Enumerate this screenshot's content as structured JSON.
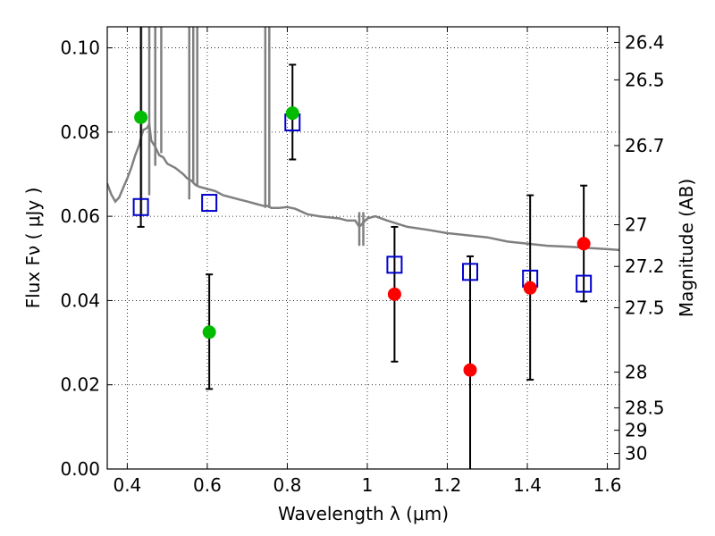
{
  "chart_data": {
    "type": "scatter",
    "xlabel": "Wavelength  λ (μm)",
    "ylabel": "Flux  Fν  ( μJy )",
    "ylabel_right": "Magnitude (AB)",
    "xlim": [
      0.35,
      1.63
    ],
    "ylim": [
      0.0,
      0.105
    ],
    "grid": true,
    "x_ticks": [
      0.4,
      0.6,
      0.8,
      1.0,
      1.2,
      1.4,
      1.6
    ],
    "x_tick_labels": [
      "0.4",
      "0.6",
      "0.8",
      "1",
      "1.2",
      "1.4",
      "1.6"
    ],
    "y_ticks": [
      0.0,
      0.02,
      0.04,
      0.06,
      0.08,
      0.1
    ],
    "y_tick_labels": [
      "0.00",
      "0.02",
      "0.04",
      "0.06",
      "0.08",
      "0.10"
    ],
    "right_ticks": [
      {
        "flux": 0.1013,
        "label": "26.4"
      },
      {
        "flux": 0.0924,
        "label": "26.5"
      },
      {
        "flux": 0.0768,
        "label": "26.7"
      },
      {
        "flux": 0.058,
        "label": "27"
      },
      {
        "flux": 0.0481,
        "label": "27.2"
      },
      {
        "flux": 0.0383,
        "label": "27.5"
      },
      {
        "flux": 0.023,
        "label": "28"
      },
      {
        "flux": 0.0145,
        "label": "28.5"
      },
      {
        "flux": 0.0092,
        "label": "29"
      },
      {
        "flux": 0.0037,
        "label": "30"
      }
    ],
    "model_spectrum": {
      "color": "#808080",
      "x": [
        0.35,
        0.36,
        0.37,
        0.38,
        0.39,
        0.4,
        0.41,
        0.42,
        0.43,
        0.435,
        0.44,
        0.45,
        0.455,
        0.46,
        0.47,
        0.48,
        0.49,
        0.5,
        0.52,
        0.54,
        0.55,
        0.56,
        0.57,
        0.58,
        0.6,
        0.62,
        0.64,
        0.66,
        0.68,
        0.7,
        0.72,
        0.74,
        0.75,
        0.76,
        0.78,
        0.8,
        0.82,
        0.85,
        0.88,
        0.9,
        0.93,
        0.95,
        0.97,
        0.98,
        0.99,
        1.0,
        1.02,
        1.05,
        1.1,
        1.15,
        1.2,
        1.25,
        1.3,
        1.35,
        1.4,
        1.45,
        1.5,
        1.55,
        1.6,
        1.63
      ],
      "y": [
        0.0678,
        0.0652,
        0.0635,
        0.0645,
        0.0668,
        0.069,
        0.0715,
        0.0745,
        0.077,
        0.079,
        0.0805,
        0.081,
        0.082,
        0.078,
        0.0765,
        0.0745,
        0.074,
        0.0725,
        0.0715,
        0.07,
        0.069,
        0.0685,
        0.0675,
        0.067,
        0.0665,
        0.066,
        0.065,
        0.0645,
        0.064,
        0.0635,
        0.063,
        0.0625,
        0.0625,
        0.062,
        0.062,
        0.0622,
        0.0618,
        0.0605,
        0.06,
        0.0598,
        0.0595,
        0.059,
        0.059,
        0.0575,
        0.0585,
        0.0595,
        0.06,
        0.059,
        0.0575,
        0.0568,
        0.056,
        0.0555,
        0.055,
        0.054,
        0.0535,
        0.053,
        0.0528,
        0.0525,
        0.0522,
        0.052
      ]
    },
    "model_lines": [
      {
        "x": 0.435,
        "top": 0.105,
        "bottom": 0.06
      },
      {
        "x": 0.455,
        "top": 0.105,
        "bottom": 0.065
      },
      {
        "x": 0.47,
        "top": 0.105,
        "bottom": 0.072
      },
      {
        "x": 0.485,
        "top": 0.105,
        "bottom": 0.075
      },
      {
        "x": 0.555,
        "top": 0.105,
        "bottom": 0.064
      },
      {
        "x": 0.565,
        "top": 0.105,
        "bottom": 0.068
      },
      {
        "x": 0.575,
        "top": 0.105,
        "bottom": 0.067
      },
      {
        "x": 0.745,
        "top": 0.105,
        "bottom": 0.062
      },
      {
        "x": 0.755,
        "top": 0.105,
        "bottom": 0.062
      },
      {
        "x": 0.98,
        "top": 0.061,
        "bottom": 0.053
      },
      {
        "x": 0.99,
        "top": 0.061,
        "bottom": 0.053
      }
    ],
    "model_photometry": {
      "color": "#0000cc",
      "x": [
        0.434,
        0.605,
        0.813,
        1.068,
        1.257,
        1.407,
        1.541
      ],
      "y": [
        0.0622,
        0.0632,
        0.0823,
        0.0485,
        0.0468,
        0.0452,
        0.044
      ]
    },
    "detections_green": {
      "color": "#00bb00",
      "x": [
        0.434,
        0.605,
        0.813
      ],
      "y": [
        0.0835,
        0.0325,
        0.0845
      ],
      "err_low": [
        0.0575,
        0.019,
        0.0735
      ],
      "err_high": [
        0.105,
        0.0462,
        0.096
      ]
    },
    "detections_red": {
      "color": "#ff0000",
      "x": [
        1.068,
        1.257,
        1.407,
        1.541
      ],
      "y": [
        0.0415,
        0.0235,
        0.043,
        0.0535
      ],
      "err_low": [
        0.0255,
        0.0,
        0.0212,
        0.0398
      ],
      "err_high": [
        0.0575,
        0.0505,
        0.065,
        0.0673
      ]
    }
  }
}
